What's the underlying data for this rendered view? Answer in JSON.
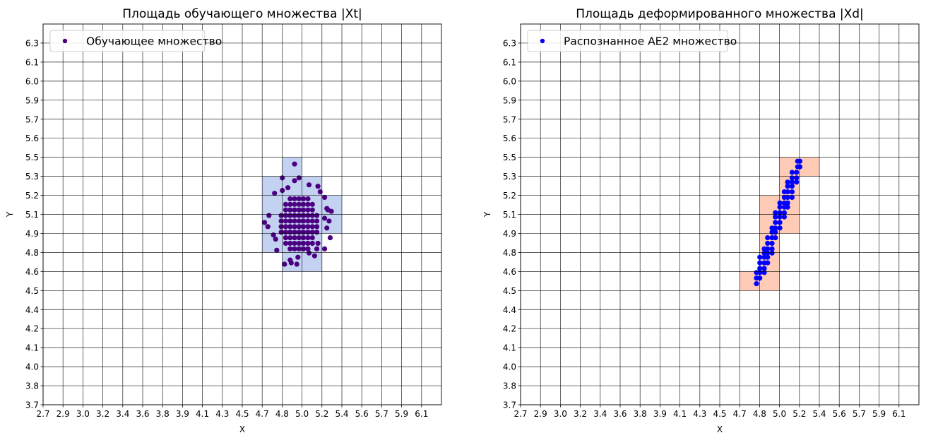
{
  "chart_data": [
    {
      "type": "scatter",
      "title": "Площадь обучающего множества |Xt|",
      "xlabel": "X",
      "ylabel": "Y",
      "xlim": [
        2.7,
        6.28
      ],
      "ylim": [
        3.7,
        6.436
      ],
      "grid": true,
      "legend_placement": "upper-left",
      "xtick_labels": [
        "2.7",
        "2.9",
        "3.0",
        "3.2",
        "3.4",
        "3.6",
        "3.8",
        "3.9",
        "4.1",
        "4.3",
        "4.5",
        "4.7",
        "4.8",
        "5.0",
        "5.2",
        "5.4",
        "5.6",
        "5.7",
        "5.9",
        "6.1"
      ],
      "ytick_labels": [
        "3.7",
        "3.8",
        "4.0",
        "4.1",
        "4.2",
        "4.4",
        "4.5",
        "4.6",
        "4.8",
        "4.9",
        "5.1",
        "5.2",
        "5.3",
        "5.5",
        "5.6",
        "5.7",
        "5.9",
        "6.0",
        "6.1",
        "6.3"
      ],
      "region_color": "#c4d2f2",
      "region_cells": [
        [
          4.848,
          5.027,
          5.342,
          5.478
        ],
        [
          4.669,
          5.206,
          5.205,
          5.342
        ],
        [
          4.669,
          5.385,
          5.068,
          5.205
        ],
        [
          4.669,
          5.385,
          4.931,
          5.068
        ],
        [
          4.669,
          5.206,
          4.794,
          4.931
        ],
        [
          4.848,
          5.206,
          4.658,
          4.794
        ]
      ],
      "series": [
        {
          "name": "Обучающее множество",
          "color": "#4b0082",
          "points": [
            [
              4.92,
              4.82
            ],
            [
              4.96,
              4.82
            ],
            [
              5.0,
              4.82
            ],
            [
              5.04,
              4.82
            ],
            [
              5.08,
              4.82
            ],
            [
              4.88,
              4.86
            ],
            [
              4.92,
              4.86
            ],
            [
              4.96,
              4.86
            ],
            [
              5.0,
              4.86
            ],
            [
              5.04,
              4.86
            ],
            [
              5.08,
              4.86
            ],
            [
              5.12,
              4.86
            ],
            [
              4.88,
              4.9
            ],
            [
              4.92,
              4.9
            ],
            [
              4.96,
              4.9
            ],
            [
              5.0,
              4.9
            ],
            [
              5.04,
              4.9
            ],
            [
              5.08,
              4.9
            ],
            [
              5.12,
              4.9
            ],
            [
              4.84,
              4.94
            ],
            [
              4.88,
              4.94
            ],
            [
              4.92,
              4.94
            ],
            [
              4.96,
              4.94
            ],
            [
              5.0,
              4.94
            ],
            [
              5.04,
              4.94
            ],
            [
              5.08,
              4.94
            ],
            [
              5.12,
              4.94
            ],
            [
              5.16,
              4.94
            ],
            [
              4.84,
              4.98
            ],
            [
              4.88,
              4.98
            ],
            [
              4.92,
              4.98
            ],
            [
              4.96,
              4.98
            ],
            [
              5.0,
              4.98
            ],
            [
              5.04,
              4.98
            ],
            [
              5.08,
              4.98
            ],
            [
              5.12,
              4.98
            ],
            [
              5.16,
              4.98
            ],
            [
              4.84,
              5.02
            ],
            [
              4.88,
              5.02
            ],
            [
              4.92,
              5.02
            ],
            [
              4.96,
              5.02
            ],
            [
              5.0,
              5.02
            ],
            [
              5.04,
              5.02
            ],
            [
              5.08,
              5.02
            ],
            [
              5.12,
              5.02
            ],
            [
              5.16,
              5.02
            ],
            [
              4.84,
              5.06
            ],
            [
              4.88,
              5.06
            ],
            [
              4.92,
              5.06
            ],
            [
              4.96,
              5.06
            ],
            [
              5.0,
              5.06
            ],
            [
              5.04,
              5.06
            ],
            [
              5.08,
              5.06
            ],
            [
              5.12,
              5.06
            ],
            [
              5.16,
              5.06
            ],
            [
              4.88,
              5.1
            ],
            [
              4.92,
              5.1
            ],
            [
              4.96,
              5.1
            ],
            [
              5.0,
              5.1
            ],
            [
              5.04,
              5.1
            ],
            [
              5.08,
              5.1
            ],
            [
              5.12,
              5.1
            ],
            [
              4.88,
              5.14
            ],
            [
              4.92,
              5.14
            ],
            [
              4.96,
              5.14
            ],
            [
              5.0,
              5.14
            ],
            [
              5.04,
              5.14
            ],
            [
              5.08,
              5.14
            ],
            [
              5.12,
              5.14
            ],
            [
              4.92,
              5.18
            ],
            [
              4.96,
              5.18
            ],
            [
              5.0,
              5.18
            ],
            [
              5.04,
              5.18
            ],
            [
              5.08,
              5.18
            ],
            [
              4.96,
              5.43
            ],
            [
              4.85,
              5.33
            ],
            [
              5.0,
              5.33
            ],
            [
              4.96,
              5.31
            ],
            [
              5.09,
              5.28
            ],
            [
              5.17,
              5.27
            ],
            [
              4.78,
              5.22
            ],
            [
              5.19,
              5.23
            ],
            [
              5.23,
              5.19
            ],
            [
              5.25,
              5.11
            ],
            [
              5.29,
              5.09
            ],
            [
              5.26,
              5.1
            ],
            [
              4.73,
              5.06
            ],
            [
              4.69,
              5.01
            ],
            [
              4.72,
              4.98
            ],
            [
              5.23,
              5.04
            ],
            [
              5.27,
              5.02
            ],
            [
              5.25,
              4.97
            ],
            [
              5.28,
              4.9
            ],
            [
              5.23,
              4.82
            ],
            [
              5.16,
              4.82
            ],
            [
              5.14,
              4.77
            ],
            [
              5.09,
              4.79
            ],
            [
              4.99,
              4.76
            ],
            [
              4.92,
              4.74
            ],
            [
              4.93,
              4.72
            ],
            [
              4.98,
              4.71
            ],
            [
              4.87,
              4.71
            ],
            [
              4.8,
              4.81
            ],
            [
              4.77,
              4.92
            ],
            [
              4.79,
              4.89
            ],
            [
              4.9,
              5.26
            ],
            [
              4.85,
              5.24
            ],
            [
              5.17,
              4.86
            ]
          ]
        }
      ]
    },
    {
      "type": "scatter",
      "title": "Площадь деформированного множества |Xd|",
      "xlabel": "X",
      "ylabel": "Y",
      "xlim": [
        2.7,
        6.28
      ],
      "ylim": [
        3.7,
        6.436
      ],
      "grid": true,
      "legend_placement": "upper-left",
      "xtick_labels": [
        "2.7",
        "2.9",
        "3.0",
        "3.2",
        "3.4",
        "3.6",
        "3.8",
        "3.9",
        "4.1",
        "4.3",
        "4.5",
        "4.7",
        "4.8",
        "5.0",
        "5.2",
        "5.4",
        "5.6",
        "5.7",
        "5.9",
        "6.1"
      ],
      "ytick_labels": [
        "3.7",
        "3.8",
        "4.0",
        "4.1",
        "4.2",
        "4.4",
        "4.5",
        "4.6",
        "4.8",
        "4.9",
        "5.1",
        "5.2",
        "5.3",
        "5.5",
        "5.6",
        "5.7",
        "5.9",
        "6.0",
        "6.1",
        "6.3"
      ],
      "region_color": "#fdcbb6",
      "region_cells": [
        [
          5.027,
          5.385,
          5.342,
          5.478
        ],
        [
          5.027,
          5.206,
          5.205,
          5.342
        ],
        [
          4.848,
          5.206,
          5.068,
          5.205
        ],
        [
          4.848,
          5.206,
          4.931,
          5.068
        ],
        [
          4.848,
          5.027,
          4.794,
          4.931
        ],
        [
          4.848,
          5.027,
          4.658,
          4.794
        ],
        [
          4.669,
          5.027,
          4.521,
          4.658
        ]
      ],
      "series": [
        {
          "name": "Распознанное AE2 множество",
          "color": "#0000ff",
          "points": [
            [
              5.19,
              5.45
            ],
            [
              5.21,
              5.45
            ],
            [
              5.19,
              5.41
            ],
            [
              5.21,
              5.41
            ],
            [
              5.14,
              5.37
            ],
            [
              5.18,
              5.37
            ],
            [
              5.14,
              5.33
            ],
            [
              5.18,
              5.33
            ],
            [
              5.1,
              5.3
            ],
            [
              5.14,
              5.3
            ],
            [
              5.18,
              5.3
            ],
            [
              5.1,
              5.27
            ],
            [
              5.14,
              5.27
            ],
            [
              5.07,
              5.23
            ],
            [
              5.1,
              5.23
            ],
            [
              5.14,
              5.23
            ],
            [
              5.07,
              5.19
            ],
            [
              5.1,
              5.19
            ],
            [
              5.14,
              5.19
            ],
            [
              5.03,
              5.15
            ],
            [
              5.07,
              5.15
            ],
            [
              5.1,
              5.15
            ],
            [
              5.03,
              5.12
            ],
            [
              5.07,
              5.12
            ],
            [
              5.1,
              5.12
            ],
            [
              4.99,
              5.08
            ],
            [
              5.03,
              5.08
            ],
            [
              5.07,
              5.08
            ],
            [
              4.99,
              5.05
            ],
            [
              5.03,
              5.05
            ],
            [
              5.07,
              5.05
            ],
            [
              4.99,
              5.01
            ],
            [
              5.03,
              5.01
            ],
            [
              4.96,
              4.97
            ],
            [
              4.99,
              4.97
            ],
            [
              5.03,
              4.97
            ],
            [
              4.96,
              4.94
            ],
            [
              4.99,
              4.94
            ],
            [
              4.92,
              4.9
            ],
            [
              4.96,
              4.9
            ],
            [
              4.99,
              4.9
            ],
            [
              4.92,
              4.86
            ],
            [
              4.96,
              4.86
            ],
            [
              4.89,
              4.82
            ],
            [
              4.92,
              4.82
            ],
            [
              4.96,
              4.82
            ],
            [
              4.89,
              4.79
            ],
            [
              4.92,
              4.79
            ],
            [
              4.96,
              4.79
            ],
            [
              4.85,
              4.76
            ],
            [
              4.89,
              4.76
            ],
            [
              4.92,
              4.76
            ],
            [
              4.85,
              4.72
            ],
            [
              4.89,
              4.72
            ],
            [
              4.92,
              4.72
            ],
            [
              4.85,
              4.68
            ],
            [
              4.89,
              4.68
            ],
            [
              4.82,
              4.65
            ],
            [
              4.85,
              4.65
            ],
            [
              4.89,
              4.65
            ],
            [
              4.82,
              4.61
            ],
            [
              4.85,
              4.61
            ],
            [
              4.82,
              4.57
            ]
          ]
        }
      ]
    }
  ]
}
